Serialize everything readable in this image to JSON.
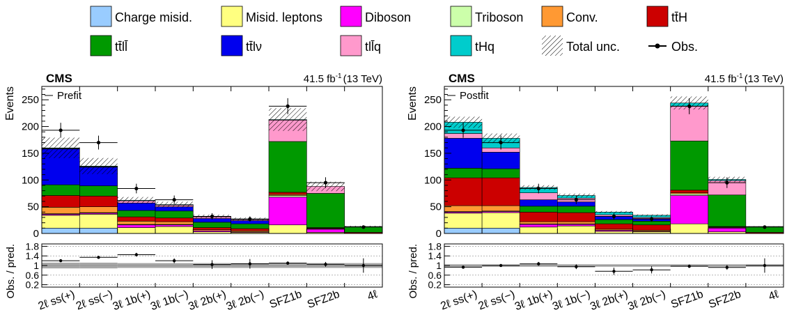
{
  "legend": {
    "entries": [
      {
        "key": "charge_misid",
        "label": "Charge misid.",
        "color": "#99ccff"
      },
      {
        "key": "misid_leptons",
        "label": "Misid. leptons",
        "color": "#ffff80"
      },
      {
        "key": "diboson",
        "label": "Diboson",
        "color": "#ff00ff"
      },
      {
        "key": "triboson",
        "label": "Triboson",
        "color": "#ccffaa"
      },
      {
        "key": "conv",
        "label": "Conv.",
        "color": "#ff9933"
      },
      {
        "key": "ttH",
        "label": "tt̄H",
        "color": "#cc0000"
      },
      {
        "key": "ttll",
        "label": "tt̄ll̄",
        "color": "#009900"
      },
      {
        "key": "ttlnu",
        "label": "tt̄lν",
        "color": "#0000ee"
      },
      {
        "key": "tllq",
        "label": "tll̄q",
        "color": "#ff99cc"
      },
      {
        "key": "tHq",
        "label": "tHq",
        "color": "#00cccc"
      },
      {
        "key": "total_unc",
        "label": "Total unc.",
        "color": "#000000"
      },
      {
        "key": "obs",
        "label": "Obs.",
        "color": "#000000"
      }
    ]
  },
  "chart_data": [
    {
      "type": "bar",
      "stacked": true,
      "panel": "Prefit",
      "cms_label": "CMS",
      "lumi": "41.5 fb",
      "lumi_sup": "-1",
      "energy": "(13 TeV)",
      "ylabel": "Events",
      "ratio_ylabel": "Obs. / pred.",
      "ylim": [
        0,
        275
      ],
      "yticks": [
        0,
        50,
        100,
        150,
        200,
        250
      ],
      "ratio_ylim": [
        0.1,
        1.9
      ],
      "ratio_yticks": [
        "0.2",
        "0.6",
        "1",
        "1.4",
        "1.8"
      ],
      "categories": [
        "2ℓ ss(+)",
        "2ℓ ss(−)",
        "3ℓ 1b(+)",
        "3ℓ 1b(−)",
        "3ℓ 2b(+)",
        "3ℓ 2b(−)",
        "SFZ1b",
        "SFZ2b",
        "4ℓ"
      ],
      "series": [
        {
          "name": "Charge misid.",
          "values": [
            10,
            10,
            0,
            0,
            0,
            0,
            0,
            0,
            0
          ]
        },
        {
          "name": "Misid. leptons",
          "values": [
            24,
            26,
            11,
            13,
            3,
            2,
            16,
            2,
            0
          ]
        },
        {
          "name": "Diboson",
          "values": [
            2,
            2,
            5,
            3,
            2,
            1,
            52,
            6,
            0
          ]
        },
        {
          "name": "Triboson",
          "values": [
            1,
            1,
            1,
            1,
            0,
            0,
            3,
            1,
            0
          ]
        },
        {
          "name": "Conv.",
          "values": [
            12,
            11,
            6,
            5,
            2,
            2,
            2,
            1,
            0
          ]
        },
        {
          "name": "tt̄H",
          "values": [
            22,
            20,
            8,
            7,
            4,
            4,
            4,
            1,
            2
          ]
        },
        {
          "name": "tt̄ll̄",
          "values": [
            20,
            19,
            12,
            13,
            10,
            9,
            95,
            64,
            11
          ]
        },
        {
          "name": "tt̄lν",
          "values": [
            67,
            35,
            14,
            8,
            7,
            6,
            0,
            0,
            0
          ]
        },
        {
          "name": "tll̄q",
          "values": [
            1,
            1,
            4,
            3,
            3,
            2,
            40,
            13,
            0
          ]
        },
        {
          "name": "tHq",
          "values": [
            1,
            1,
            1,
            1,
            1,
            1,
            1,
            0,
            0
          ]
        }
      ],
      "total_unc_rel": [
        0.12,
        0.12,
        0.1,
        0.1,
        0.1,
        0.1,
        0.1,
        0.1,
        0.1
      ],
      "observed": [
        193,
        170,
        84,
        63,
        32,
        27,
        238,
        95,
        12
      ],
      "observed_err": [
        14,
        13,
        9,
        8,
        6,
        5,
        15,
        10,
        3
      ],
      "ratio": [
        1.2,
        1.34,
        1.45,
        1.2,
        1.04,
        1.07,
        1.1,
        1.05,
        1.0
      ],
      "ratio_err": [
        0.06,
        0.05,
        0.08,
        0.1,
        0.18,
        0.2,
        0.07,
        0.1,
        0.3
      ],
      "ratio_unc": [
        0.12,
        0.12,
        0.1,
        0.1,
        0.1,
        0.1,
        0.1,
        0.1,
        0.1
      ]
    },
    {
      "type": "bar",
      "stacked": true,
      "panel": "Postfit",
      "cms_label": "CMS",
      "lumi": "41.5 fb",
      "lumi_sup": "-1",
      "energy": "(13 TeV)",
      "ylabel": "Events",
      "ratio_ylabel": "Obs. / pred.",
      "ylim": [
        0,
        275
      ],
      "yticks": [
        0,
        50,
        100,
        150,
        200,
        250
      ],
      "ratio_ylim": [
        0.1,
        1.9
      ],
      "ratio_yticks": [
        "0.2",
        "0.6",
        "1",
        "1.4",
        "1.8"
      ],
      "categories": [
        "2ℓ ss(+)",
        "2ℓ ss(−)",
        "3ℓ 1b(+)",
        "3ℓ 1b(−)",
        "3ℓ 2b(+)",
        "3ℓ 2b(−)",
        "SFZ1b",
        "SFZ2b",
        "4ℓ"
      ],
      "series": [
        {
          "name": "Charge misid.",
          "values": [
            10,
            10,
            0,
            0,
            0,
            0,
            0,
            0,
            0
          ]
        },
        {
          "name": "Misid. leptons",
          "values": [
            28,
            29,
            12,
            14,
            4,
            3,
            18,
            3,
            0
          ]
        },
        {
          "name": "Diboson",
          "values": [
            2,
            2,
            5,
            3,
            2,
            1,
            53,
            7,
            0
          ]
        },
        {
          "name": "Triboson",
          "values": [
            1,
            1,
            1,
            1,
            0,
            0,
            3,
            1,
            0
          ]
        },
        {
          "name": "Conv.",
          "values": [
            11,
            10,
            4,
            4,
            2,
            2,
            2,
            1,
            0
          ]
        },
        {
          "name": "tt̄H",
          "values": [
            52,
            52,
            18,
            17,
            10,
            10,
            5,
            1,
            2
          ]
        },
        {
          "name": "tt̄ll̄",
          "values": [
            18,
            17,
            11,
            12,
            8,
            7,
            92,
            59,
            11
          ]
        },
        {
          "name": "tt̄lν",
          "values": [
            56,
            31,
            12,
            8,
            6,
            5,
            0,
            0,
            0
          ]
        },
        {
          "name": "tll̄q",
          "values": [
            9,
            8,
            13,
            7,
            3,
            2,
            65,
            27,
            0
          ]
        },
        {
          "name": "tHq",
          "values": [
            21,
            18,
            10,
            5,
            5,
            4,
            6,
            2,
            0
          ]
        }
      ],
      "total_unc_rel": [
        0.05,
        0.05,
        0.05,
        0.05,
        0.05,
        0.05,
        0.05,
        0.05,
        0.05
      ],
      "observed": [
        193,
        170,
        84,
        63,
        32,
        27,
        238,
        95,
        12
      ],
      "observed_err": [
        14,
        13,
        9,
        8,
        6,
        5,
        15,
        10,
        3
      ],
      "ratio": [
        0.93,
        1.0,
        1.07,
        0.95,
        0.76,
        0.82,
        0.97,
        0.92,
        1.0
      ],
      "ratio_err": [
        0.06,
        0.05,
        0.08,
        0.1,
        0.15,
        0.15,
        0.07,
        0.1,
        0.3
      ],
      "ratio_unc": [
        0.05,
        0.05,
        0.05,
        0.05,
        0.05,
        0.05,
        0.05,
        0.05,
        0.05
      ]
    }
  ]
}
